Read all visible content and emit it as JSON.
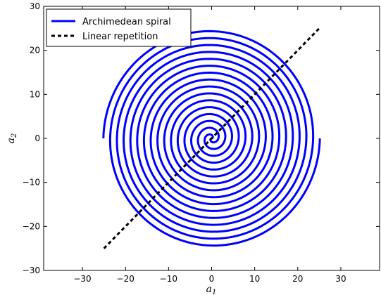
{
  "chart_data": {
    "type": "line",
    "title": "",
    "xlabel": {
      "base": "a",
      "sub": "1"
    },
    "ylabel": {
      "base": "a",
      "sub": "2"
    },
    "xlim": [
      -39,
      39
    ],
    "ylim": [
      -30,
      30
    ],
    "xticks": [
      -30,
      -20,
      -10,
      0,
      10,
      20,
      30
    ],
    "yticks": [
      -30,
      -20,
      -10,
      0,
      10,
      20,
      30
    ],
    "xtick_labels": [
      "−30",
      "−20",
      "−10",
      "0",
      "10",
      "20",
      "30"
    ],
    "ytick_labels": [
      "−30",
      "−20",
      "−10",
      "0",
      "10",
      "20",
      "30"
    ],
    "grid": false,
    "legend_position": "top-left",
    "series": [
      {
        "name": "Archimedean spiral",
        "style": "solid",
        "color": "#0000ff",
        "curve": "archimedean-spiral",
        "theta_range": [
          0,
          50.265
        ],
        "radius_per_radian": 0.5,
        "endpoints": [
          [
            0,
            0
          ],
          [
            25.13,
            0
          ]
        ],
        "mirrored_branch_endpoints": [
          [
            0,
            0
          ],
          [
            -25.13,
            0
          ]
        ]
      },
      {
        "name": "Linear repetition",
        "style": "dashed",
        "color": "#000000",
        "x": [
          -25,
          25
        ],
        "y": [
          -25,
          25
        ]
      }
    ]
  }
}
